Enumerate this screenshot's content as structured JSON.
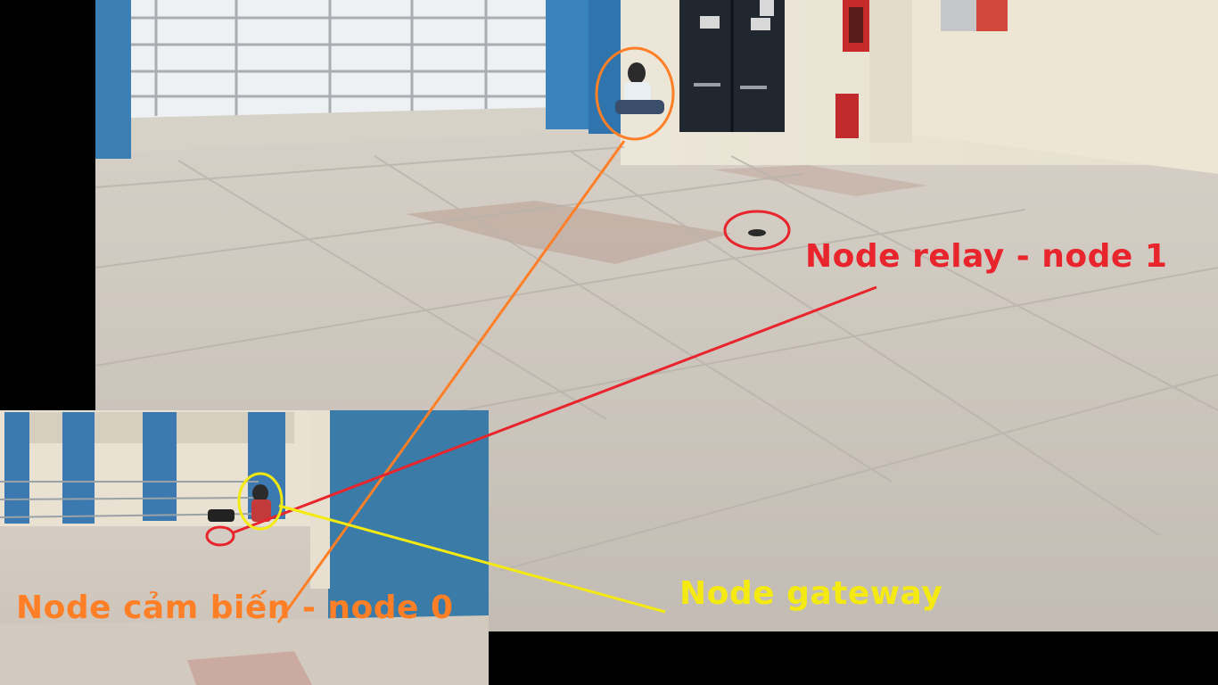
{
  "annotations": {
    "relay": {
      "text": "Node relay - node 1",
      "color": "#e8242c"
    },
    "gateway": {
      "text": "Node gateway",
      "color": "#f4ea12"
    },
    "sensor": {
      "text": "Node cảm biến - node 0",
      "color": "#ff7f27"
    }
  }
}
